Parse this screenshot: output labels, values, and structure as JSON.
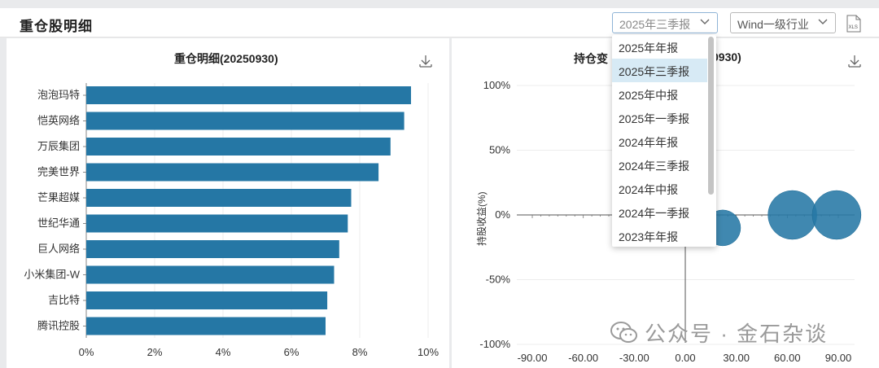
{
  "header": {
    "title": "重仓股明细",
    "period_select": "2025年三季报",
    "industry_select": "Wind一级行业",
    "export_icon": "xls-file-icon"
  },
  "left_panel": {
    "title": "重仓明细(20250930)",
    "download_icon": "download-icon"
  },
  "right_panel": {
    "title_visible": "持仓变",
    "title_tail": "0930)",
    "download_icon": "download-icon"
  },
  "dropdown": {
    "items": [
      "2025年年报",
      "2025年三季报",
      "2025年中报",
      "2025年一季报",
      "2024年年报",
      "2024年三季报",
      "2024年中报",
      "2024年一季报",
      "2023年年报"
    ],
    "selected_index": 1
  },
  "watermark": {
    "text": "公众号 · 金石杂谈"
  },
  "chart_data": [
    {
      "type": "bar",
      "orientation": "horizontal",
      "title": "重仓明细(20250930)",
      "categories": [
        "泡泡玛特",
        "恺英网络",
        "万辰集团",
        "完美世界",
        "芒果超媒",
        "世纪华通",
        "巨人网络",
        "小米集团-W",
        "吉比特",
        "腾讯控股"
      ],
      "values": [
        9.5,
        9.3,
        8.9,
        8.55,
        7.75,
        7.65,
        7.4,
        7.25,
        7.05,
        7.0
      ],
      "xticks": [
        "0%",
        "2%",
        "4%",
        "6%",
        "8%",
        "10%"
      ],
      "xlim": [
        0,
        10
      ],
      "color": "#2577a5"
    },
    {
      "type": "scatter",
      "title": "持仓变",
      "ylabel": "持股收益(%)",
      "yticks": [
        "100%",
        "50%",
        "0%",
        "-50%",
        "-100%"
      ],
      "xticks": [
        "-90.00",
        "-60.00",
        "-30.00",
        "0.00",
        "30.00",
        "60.00",
        "90.00"
      ],
      "xlim": [
        -100,
        100
      ],
      "ylim": [
        -100,
        100
      ],
      "points": [
        {
          "x": 22,
          "y": -10,
          "r": 22
        },
        {
          "x": 63,
          "y": 0,
          "r": 30
        },
        {
          "x": 89,
          "y": 0,
          "r": 30
        }
      ],
      "color": "#2577a5"
    }
  ]
}
